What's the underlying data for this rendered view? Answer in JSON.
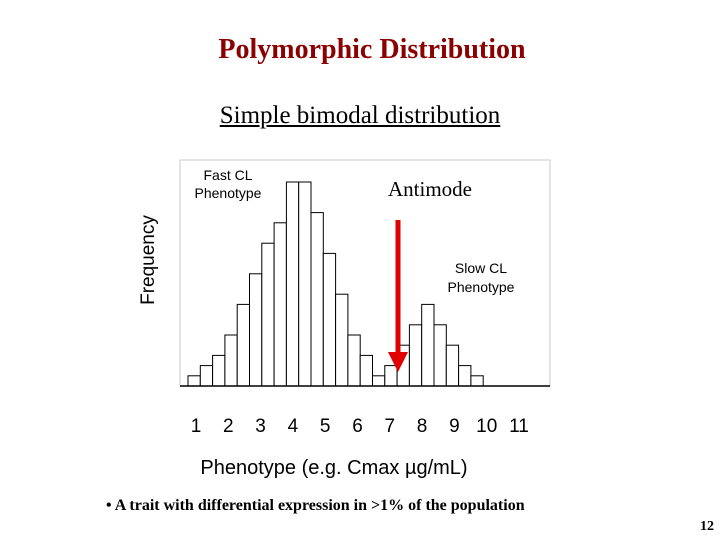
{
  "slide": {
    "title": "Polymorphic Distribution",
    "subtitle": "Simple bimodal distribution",
    "bullet": "• A trait with differential expression in >1% of the population",
    "page_number": "12"
  },
  "chart_data": {
    "type": "bar",
    "xlabel": "Phenotype (e.g. Cmax µg/mL)",
    "ylabel": "Frequency",
    "x_tick_labels": [
      "1",
      "2",
      "3",
      "4",
      "5",
      "6",
      "7",
      "8",
      "9",
      "10",
      "11"
    ],
    "values": [
      1,
      2,
      3,
      5,
      8,
      11,
      14,
      16,
      20,
      20,
      17,
      13,
      9,
      5,
      3,
      1,
      2,
      4,
      6,
      8,
      6,
      4,
      2,
      1
    ],
    "annotations": {
      "fast": "Fast CL\nPhenotype",
      "slow": "Slow CL\nPhenotype",
      "antimode": "Antimode"
    },
    "colors": {
      "bar_fill": "#ffffff",
      "bar_stroke": "#000000",
      "arrow": "#e00000"
    }
  }
}
